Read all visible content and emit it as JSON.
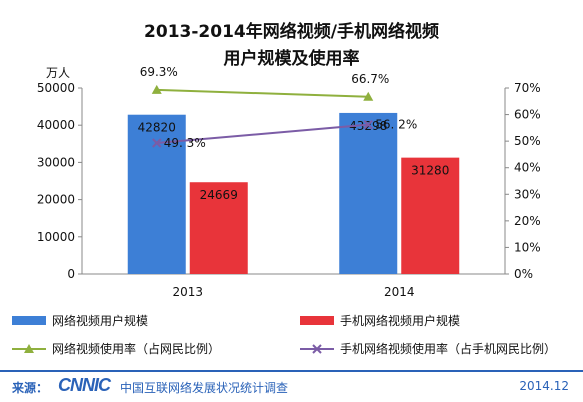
{
  "chart_data": {
    "type": "bar",
    "title_line1": "2013-2014年网络视频/手机网络视频",
    "title_line2": "用户规模及使用率",
    "y_unit": "万人",
    "categories": [
      "2013",
      "2014"
    ],
    "left_axis": {
      "ylim": [
        0,
        50000
      ],
      "ticks": [
        "0",
        "10000",
        "20000",
        "30000",
        "40000",
        "50000"
      ]
    },
    "right_axis": {
      "ylim": [
        0,
        70
      ],
      "ticks": [
        "0%",
        "10%",
        "20%",
        "30%",
        "40%",
        "50%",
        "60%",
        "70%"
      ]
    },
    "bar_series": [
      {
        "name": "网络视频用户规模",
        "values": [
          42820,
          43298
        ],
        "labels": [
          "42820",
          "43298"
        ],
        "color": "#3d7fd6"
      },
      {
        "name": "手机网络视频用户规模",
        "values": [
          24669,
          31280
        ],
        "labels": [
          "24669",
          "31280"
        ],
        "color": "#e8343a"
      }
    ],
    "line_series": [
      {
        "name": "网络视频使用率（占网民比例）",
        "values": [
          69.3,
          66.7
        ],
        "labels": [
          "69.3%",
          "66.7%"
        ],
        "color": "#8fb03e",
        "marker": "triangle"
      },
      {
        "name": "手机网络视频使用率（占手机网民比例）",
        "values": [
          49.3,
          56.2
        ],
        "labels": [
          "49. 3%",
          "56. 2%"
        ],
        "color": "#7b5ca6",
        "marker": "x"
      }
    ],
    "grid": false,
    "legend_position": "bottom"
  },
  "footer": {
    "source_label": "来源：",
    "logo_text": "CNNIC",
    "org_name": "中国互联网络发展状况统计调查",
    "date": "2014.12"
  }
}
